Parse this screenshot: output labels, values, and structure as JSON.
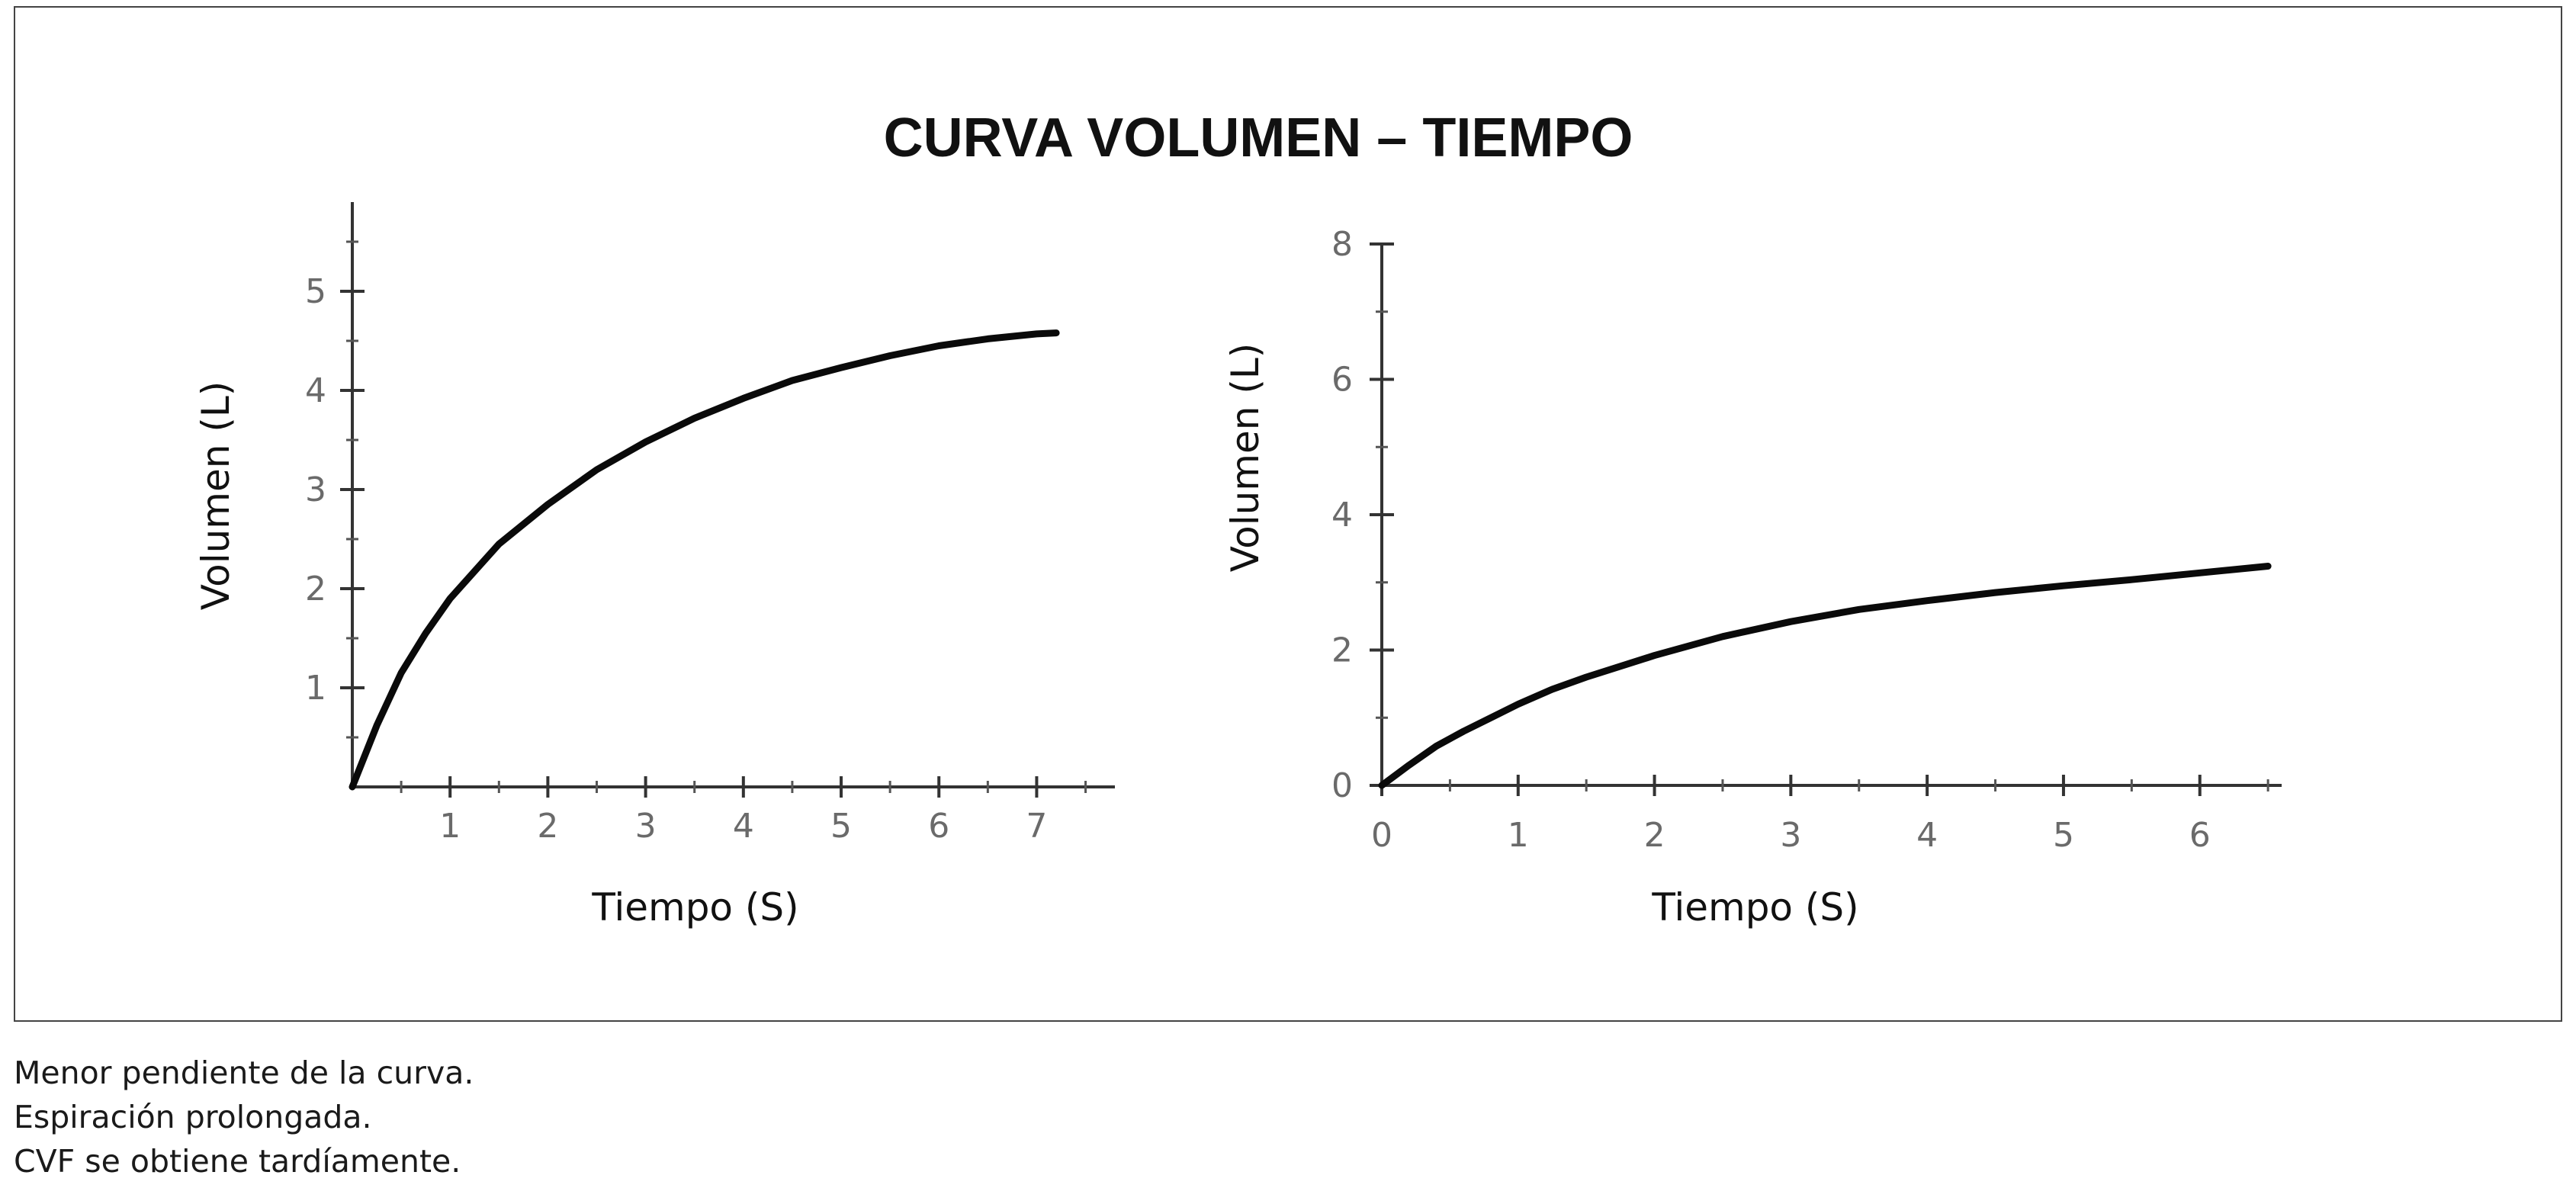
{
  "title": "CURVA VOLUMEN – TIEMPO",
  "notes": [
    "Menor pendiente de la curva.",
    "Espiración prolongada.",
    "CVF se obtiene tardíamente."
  ],
  "chart_data": [
    {
      "type": "line",
      "xlabel": "Tiempo (S)",
      "ylabel": "Volumen (L)",
      "xlim": [
        0,
        7.8
      ],
      "ylim": [
        0,
        5.9
      ],
      "xticks": [
        1,
        2,
        3,
        4,
        5,
        6,
        7
      ],
      "yticks": [
        1,
        2,
        3,
        4,
        5
      ],
      "series": [
        {
          "x": [
            0,
            0.25,
            0.5,
            0.75,
            1.0,
            1.5,
            2.0,
            2.5,
            3.0,
            3.5,
            4.0,
            4.5,
            5.0,
            5.5,
            6.0,
            6.5,
            7.0,
            7.2
          ],
          "values": [
            0,
            0.62,
            1.15,
            1.55,
            1.9,
            2.45,
            2.85,
            3.2,
            3.48,
            3.72,
            3.92,
            4.1,
            4.23,
            4.35,
            4.45,
            4.52,
            4.57,
            4.58
          ]
        }
      ]
    },
    {
      "type": "line",
      "xlabel": "Tiempo (S)",
      "ylabel": "Volumen (L)",
      "xlim": [
        0,
        6.6
      ],
      "ylim": [
        0,
        8
      ],
      "xticks": [
        0,
        1,
        2,
        3,
        4,
        5,
        6
      ],
      "yticks": [
        0,
        2,
        4,
        6,
        8
      ],
      "series": [
        {
          "x": [
            0,
            0.2,
            0.4,
            0.6,
            0.8,
            1.0,
            1.25,
            1.5,
            2.0,
            2.5,
            3.0,
            3.5,
            4.0,
            4.5,
            5.0,
            5.5,
            6.0,
            6.5
          ],
          "values": [
            0,
            0.3,
            0.58,
            0.8,
            1.0,
            1.2,
            1.42,
            1.6,
            1.92,
            2.2,
            2.42,
            2.6,
            2.73,
            2.85,
            2.95,
            3.04,
            3.14,
            3.24
          ]
        }
      ]
    }
  ]
}
